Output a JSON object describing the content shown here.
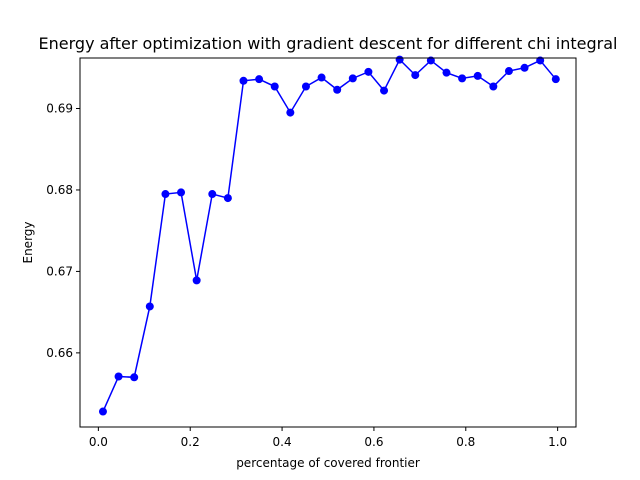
{
  "chart_data": {
    "type": "line",
    "title": "Energy after optimization with gradient descent for different chi integral",
    "xlabel": "percentage of covered frontier",
    "ylabel": "Energy",
    "xlim": [
      -0.04,
      1.04
    ],
    "ylim": [
      0.6509,
      0.6962
    ],
    "xticks": [
      0.0,
      0.2,
      0.4,
      0.6,
      0.8,
      1.0
    ],
    "xtick_labels": [
      "0.0",
      "0.2",
      "0.4",
      "0.6",
      "0.8",
      "1.0"
    ],
    "yticks": [
      0.66,
      0.67,
      0.68,
      0.69
    ],
    "ytick_labels": [
      "0.66",
      "0.67",
      "0.68",
      "0.69"
    ],
    "grid": false,
    "legend": "none",
    "color": "#0000ff",
    "marker": "circle",
    "series": [
      {
        "x": [
          0.01,
          0.044,
          0.078,
          0.112,
          0.146,
          0.18,
          0.214,
          0.248,
          0.282,
          0.316,
          0.35,
          0.384,
          0.418,
          0.452,
          0.486,
          0.52,
          0.554,
          0.588,
          0.622,
          0.656,
          0.69,
          0.724,
          0.758,
          0.792,
          0.826,
          0.86,
          0.894,
          0.928,
          0.962,
          0.996
        ],
        "values": [
          0.6528,
          0.6571,
          0.657,
          0.6657,
          0.6795,
          0.6797,
          0.6689,
          0.6795,
          0.679,
          0.6934,
          0.6936,
          0.6927,
          0.6895,
          0.6927,
          0.6938,
          0.6923,
          0.6937,
          0.6945,
          0.6922,
          0.696,
          0.6941,
          0.6959,
          0.6944,
          0.6937,
          0.694,
          0.6927,
          0.6946,
          0.695,
          0.6959,
          0.6936
        ]
      }
    ]
  }
}
